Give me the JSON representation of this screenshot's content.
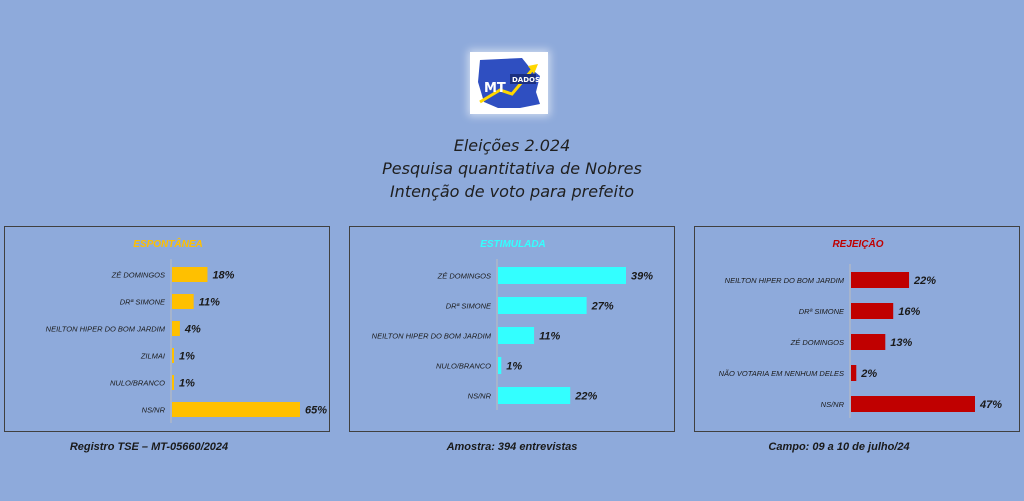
{
  "headline": {
    "line1": "Eleições 2.024",
    "line2": "Pesquisa quantitativa de Nobres",
    "line3": "Intenção de voto para prefeito"
  },
  "logo": {
    "text_mt": "MT",
    "text_dados": "DADOS",
    "icon": "mt-dados-logo-icon"
  },
  "chart_data": [
    {
      "type": "bar",
      "orientation": "horizontal",
      "title": "ESPONTÂNEA",
      "title_color": "#ffc000",
      "bar_color": "#ffc000",
      "categories": [
        "ZÉ DOMINGOS",
        "DRª SIMONE",
        "NEILTON HIPER DO BOM JARDIM",
        "ZILMAI",
        "NULO/BRANCO",
        "NS/NR"
      ],
      "values": [
        18,
        11,
        4,
        1,
        1,
        65
      ],
      "value_labels": [
        "18%",
        "11%",
        "4%",
        "1%",
        "1%",
        "65%"
      ],
      "xlim": [
        0,
        65
      ],
      "grid": false
    },
    {
      "type": "bar",
      "orientation": "horizontal",
      "title": "ESTIMULADA",
      "title_color": "#33ffff",
      "bar_color": "#33ffff",
      "categories": [
        "ZÉ DOMINGOS",
        "DRª SIMONE",
        "NEILTON HIPER DO BOM JARDIM",
        "NULO/BRANCO",
        "NS/NR"
      ],
      "values": [
        39,
        27,
        11,
        1,
        22
      ],
      "value_labels": [
        "39%",
        "27%",
        "11%",
        "1%",
        "22%"
      ],
      "xlim": [
        0,
        39
      ],
      "grid": false
    },
    {
      "type": "bar",
      "orientation": "horizontal",
      "title": "REJEIÇÃO",
      "title_color": "#c00000",
      "bar_color": "#c00000",
      "categories": [
        "NEILTON HIPER DO BOM JARDIM",
        "DRª SIMONE",
        "ZÉ DOMINGOS",
        "NÃO VOTARIA EM NENHUM DELES",
        "NS/NR"
      ],
      "values": [
        22,
        16,
        13,
        2,
        47
      ],
      "value_labels": [
        "22%",
        "16%",
        "13%",
        "2%",
        "47%"
      ],
      "xlim": [
        0,
        47
      ],
      "grid": false
    }
  ],
  "footers": {
    "registro": "Registro TSE – MT-05660/2024",
    "amostra": "Amostra: 394 entrevistas",
    "campo": "Campo: 09 a 10 de julho/24"
  }
}
